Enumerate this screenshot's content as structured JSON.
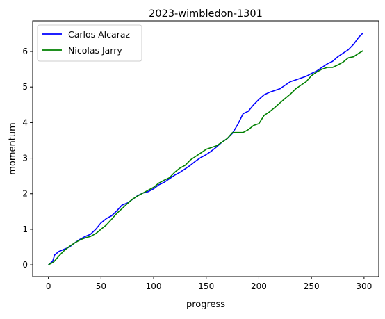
{
  "chart_data": {
    "type": "line",
    "title": "2023-wimbledon-1301",
    "xlabel": "progress",
    "ylabel": "momentum",
    "xlim": [
      -14.95,
      313.95
    ],
    "ylim": [
      -0.33,
      6.86
    ],
    "xticks": [
      0,
      50,
      100,
      150,
      200,
      250,
      300
    ],
    "yticks": [
      0,
      1,
      2,
      3,
      4,
      5,
      6
    ],
    "grid": false,
    "legend_position": "upper-left",
    "series": [
      {
        "name": "Carlos Alcaraz",
        "color": "#0000ff",
        "points": [
          [
            0,
            0.0
          ],
          [
            4,
            0.1
          ],
          [
            6,
            0.28
          ],
          [
            10,
            0.38
          ],
          [
            15,
            0.44
          ],
          [
            20,
            0.5
          ],
          [
            25,
            0.62
          ],
          [
            30,
            0.72
          ],
          [
            35,
            0.8
          ],
          [
            40,
            0.86
          ],
          [
            45,
            1.0
          ],
          [
            50,
            1.18
          ],
          [
            55,
            1.3
          ],
          [
            60,
            1.38
          ],
          [
            65,
            1.52
          ],
          [
            70,
            1.68
          ],
          [
            75,
            1.74
          ],
          [
            80,
            1.84
          ],
          [
            85,
            1.95
          ],
          [
            90,
            2.02
          ],
          [
            95,
            2.06
          ],
          [
            100,
            2.14
          ],
          [
            105,
            2.25
          ],
          [
            110,
            2.32
          ],
          [
            115,
            2.42
          ],
          [
            120,
            2.52
          ],
          [
            125,
            2.6
          ],
          [
            130,
            2.7
          ],
          [
            135,
            2.8
          ],
          [
            140,
            2.92
          ],
          [
            145,
            3.02
          ],
          [
            150,
            3.1
          ],
          [
            155,
            3.2
          ],
          [
            160,
            3.32
          ],
          [
            165,
            3.45
          ],
          [
            170,
            3.55
          ],
          [
            175,
            3.7
          ],
          [
            180,
            3.95
          ],
          [
            185,
            4.25
          ],
          [
            190,
            4.32
          ],
          [
            195,
            4.5
          ],
          [
            200,
            4.65
          ],
          [
            205,
            4.78
          ],
          [
            210,
            4.85
          ],
          [
            215,
            4.9
          ],
          [
            220,
            4.95
          ],
          [
            225,
            5.05
          ],
          [
            230,
            5.15
          ],
          [
            235,
            5.2
          ],
          [
            240,
            5.25
          ],
          [
            245,
            5.3
          ],
          [
            250,
            5.38
          ],
          [
            255,
            5.45
          ],
          [
            260,
            5.55
          ],
          [
            265,
            5.65
          ],
          [
            270,
            5.72
          ],
          [
            275,
            5.85
          ],
          [
            280,
            5.95
          ],
          [
            285,
            6.05
          ],
          [
            290,
            6.2
          ],
          [
            295,
            6.4
          ],
          [
            299,
            6.52
          ]
        ]
      },
      {
        "name": "Nicolas Jarry",
        "color": "#008000",
        "points": [
          [
            0,
            0.0
          ],
          [
            5,
            0.08
          ],
          [
            10,
            0.25
          ],
          [
            15,
            0.4
          ],
          [
            20,
            0.52
          ],
          [
            25,
            0.62
          ],
          [
            30,
            0.7
          ],
          [
            35,
            0.76
          ],
          [
            40,
            0.8
          ],
          [
            45,
            0.88
          ],
          [
            50,
            1.0
          ],
          [
            55,
            1.12
          ],
          [
            60,
            1.28
          ],
          [
            65,
            1.45
          ],
          [
            70,
            1.58
          ],
          [
            75,
            1.72
          ],
          [
            80,
            1.85
          ],
          [
            85,
            1.94
          ],
          [
            90,
            2.02
          ],
          [
            95,
            2.1
          ],
          [
            100,
            2.18
          ],
          [
            105,
            2.3
          ],
          [
            110,
            2.38
          ],
          [
            115,
            2.45
          ],
          [
            120,
            2.6
          ],
          [
            125,
            2.72
          ],
          [
            130,
            2.8
          ],
          [
            135,
            2.95
          ],
          [
            140,
            3.05
          ],
          [
            145,
            3.15
          ],
          [
            150,
            3.25
          ],
          [
            155,
            3.3
          ],
          [
            160,
            3.35
          ],
          [
            165,
            3.45
          ],
          [
            170,
            3.55
          ],
          [
            175,
            3.72
          ],
          [
            180,
            3.72
          ],
          [
            185,
            3.72
          ],
          [
            190,
            3.8
          ],
          [
            195,
            3.92
          ],
          [
            200,
            3.97
          ],
          [
            205,
            4.2
          ],
          [
            210,
            4.3
          ],
          [
            215,
            4.42
          ],
          [
            220,
            4.55
          ],
          [
            225,
            4.68
          ],
          [
            230,
            4.8
          ],
          [
            235,
            4.95
          ],
          [
            240,
            5.05
          ],
          [
            245,
            5.15
          ],
          [
            250,
            5.32
          ],
          [
            255,
            5.42
          ],
          [
            260,
            5.5
          ],
          [
            265,
            5.55
          ],
          [
            270,
            5.55
          ],
          [
            275,
            5.62
          ],
          [
            280,
            5.7
          ],
          [
            285,
            5.82
          ],
          [
            290,
            5.85
          ],
          [
            295,
            5.95
          ],
          [
            299,
            6.02
          ]
        ]
      }
    ]
  }
}
